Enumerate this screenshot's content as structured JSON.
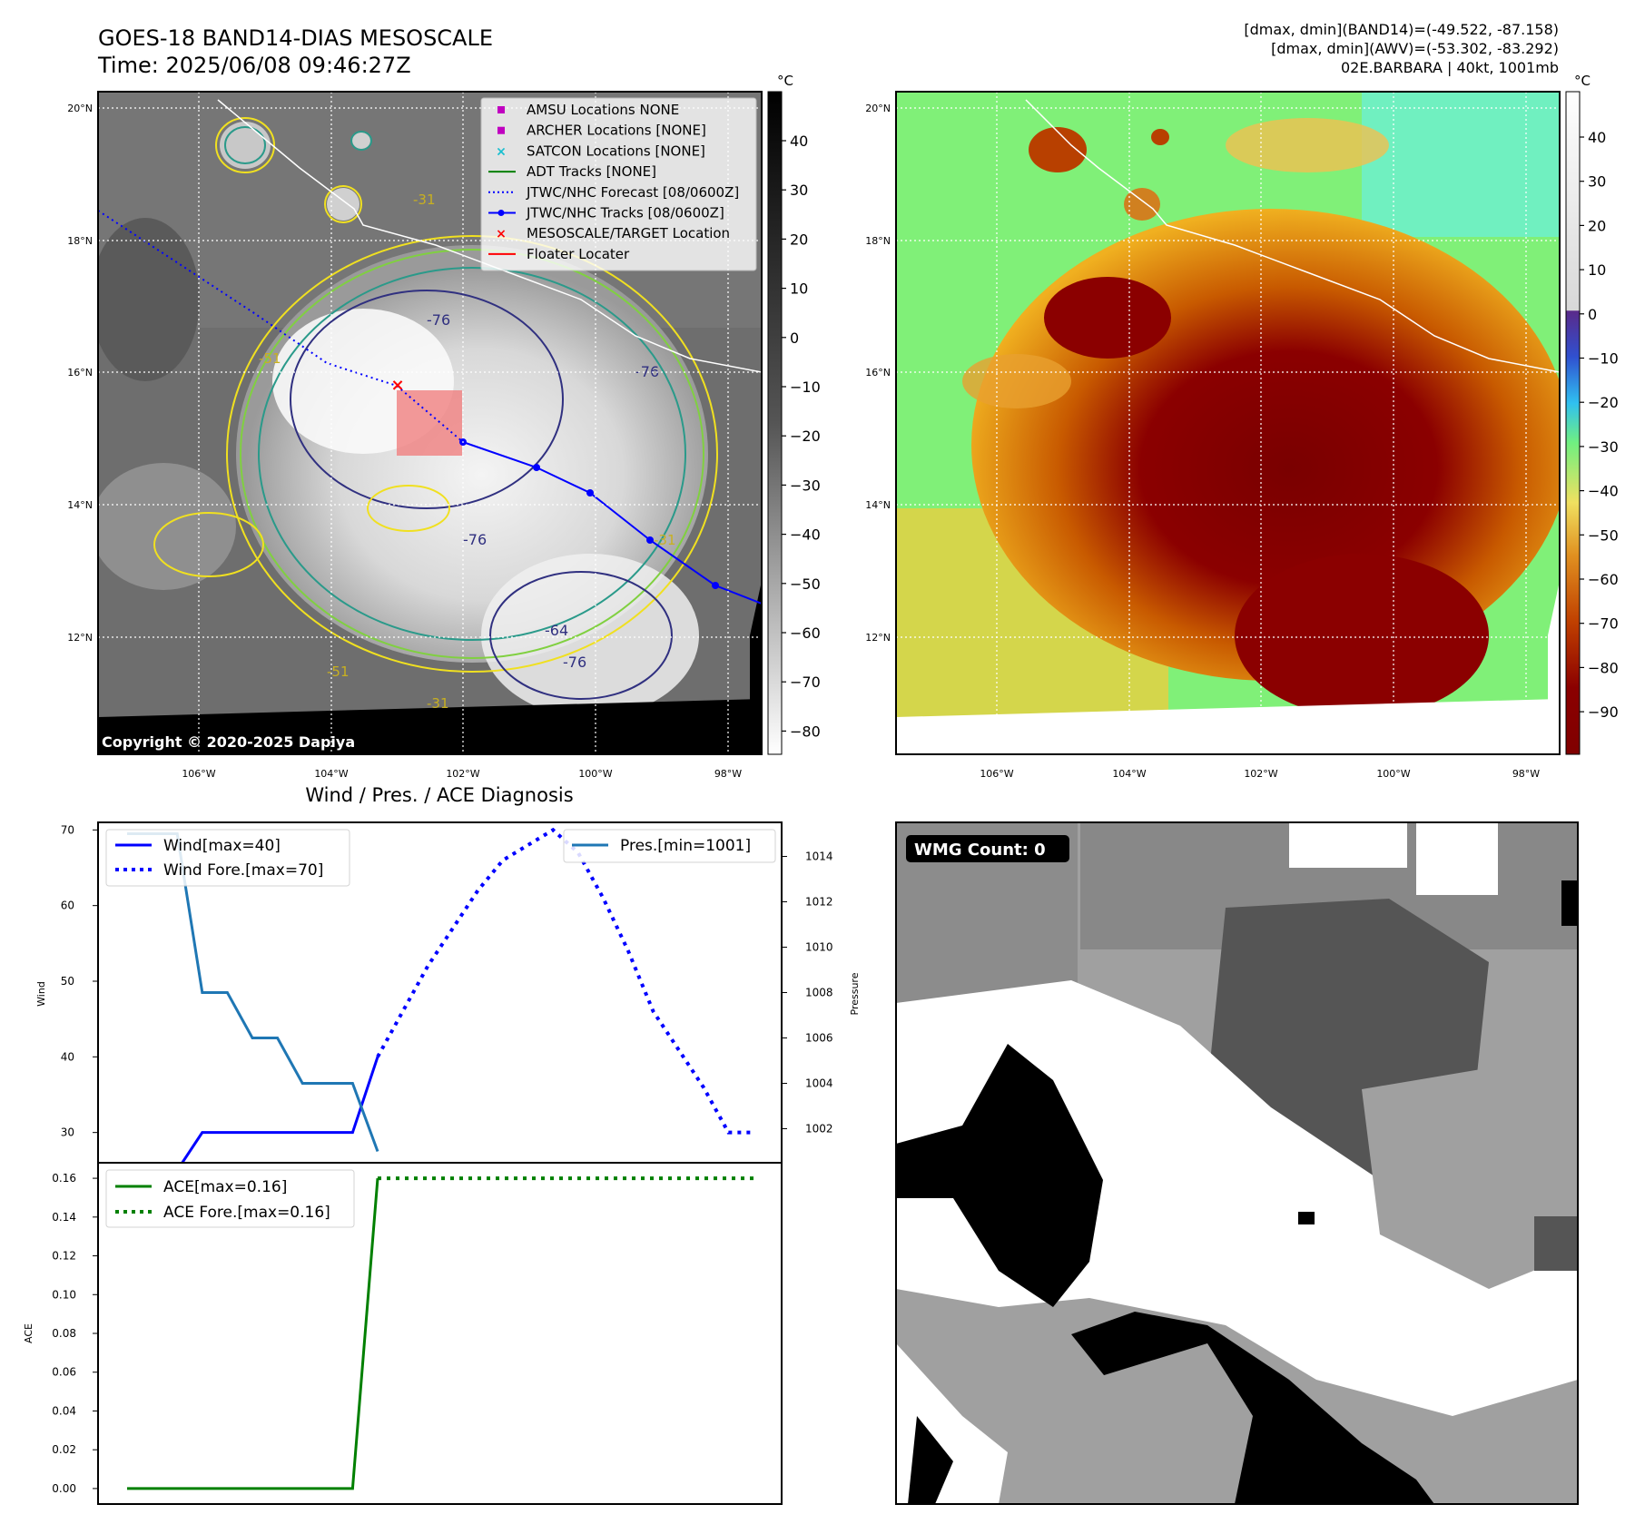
{
  "header": {
    "title_line1": "GOES-18 BAND14-DIAS MESOSCALE",
    "title_line2": "Time: 2025/06/08 09:46:27Z",
    "right_line1": "[dmax, dmin](BAND14)=(-49.522, -87.158)",
    "right_line2": "[dmax, dmin](AWV)=(-53.302, -83.292)",
    "right_line3": "02E.BARBARA | 40kt, 1001mb"
  },
  "map_axes": {
    "lon_labels": [
      "106°W",
      "104°W",
      "102°W",
      "100°W",
      "98°W"
    ],
    "lat_labels": [
      "20°N",
      "18°N",
      "16°N",
      "14°N",
      "12°N"
    ]
  },
  "map_left": {
    "copyright": "Copyright © 2020-2025 Dapiya",
    "colorbar_unit": "°C",
    "colorbar_ticks": [
      "40",
      "30",
      "20",
      "10",
      "0",
      "−10",
      "−20",
      "−30",
      "−40",
      "−50",
      "−60",
      "−70",
      "−80"
    ],
    "legend": [
      {
        "label": "AMSU Locations NONE",
        "color": "#c000c0",
        "marker": "square"
      },
      {
        "label": "ARCHER Locations [NONE]",
        "color": "#c000c0",
        "marker": "square"
      },
      {
        "label": "SATCON Locations [NONE]",
        "color": "#17becf",
        "marker": "x"
      },
      {
        "label": "ADT Tracks [NONE]",
        "color": "#008000",
        "marker": "line"
      },
      {
        "label": "JTWC/NHC Forecast [08/0600Z]",
        "color": "#0000ff",
        "marker": "dotted"
      },
      {
        "label": "JTWC/NHC Tracks [08/0600Z]",
        "color": "#0000ff",
        "marker": "line-dot"
      },
      {
        "label": "MESOSCALE/TARGET Location",
        "color": "#ff0000",
        "marker": "x"
      },
      {
        "label": "Floater Locater",
        "color": "#ff0000",
        "marker": "line"
      }
    ],
    "contour_labels": [
      "-76",
      "-76",
      "-76",
      "-76",
      "-64",
      "-51",
      "-31",
      "-31",
      "-31",
      "-51"
    ]
  },
  "map_right": {
    "colorbar_unit": "°C",
    "colorbar_ticks": [
      "40",
      "30",
      "20",
      "10",
      "0",
      "−10",
      "−20",
      "−30",
      "−40",
      "−50",
      "−60",
      "−70",
      "−80",
      "−90"
    ]
  },
  "panel_wind": {
    "title": "Wind / Pres. / ACE Diagnosis",
    "ylabel_left": "Wind",
    "ylabel_right": "Pressure",
    "yticks_left": [
      "70",
      "60",
      "50",
      "40",
      "30"
    ],
    "yticks_right": [
      "1014",
      "1012",
      "1010",
      "1008",
      "1006",
      "1004",
      "1002"
    ],
    "legend_left": [
      "Wind[max=40]",
      "Wind Fore.[max=70]"
    ],
    "legend_right": [
      "Pres.[min=1001]"
    ]
  },
  "panel_ace": {
    "ylabel": "ACE",
    "yticks": [
      "0.16",
      "0.14",
      "0.12",
      "0.10",
      "0.08",
      "0.06",
      "0.04",
      "0.02",
      "0.00"
    ],
    "legend": [
      "ACE[max=0.16]",
      "ACE Fore.[max=0.16]"
    ]
  },
  "panel_wmg": {
    "badge": "WMG Count: 0"
  },
  "colors": {
    "wind": "#0000ff",
    "pressure": "#1f77b4",
    "ace": "#008000",
    "track": "#0000ff",
    "floater": "#f08080",
    "target": "#ff0000"
  },
  "chart_data": [
    {
      "type": "line",
      "panel": "wind-pressure",
      "x": [
        0,
        1,
        2,
        3,
        4,
        5,
        6,
        7,
        8,
        9,
        10,
        11,
        12,
        13,
        14,
        15,
        16,
        17,
        18,
        19,
        20,
        21,
        22,
        23,
        24,
        25
      ],
      "series": [
        {
          "name": "Wind[max=40]",
          "axis": "left",
          "style": "solid",
          "x": [
            0,
            1,
            2,
            3,
            4,
            5,
            6,
            7,
            8,
            9,
            10
          ],
          "values": [
            25,
            25,
            25,
            30,
            30,
            30,
            30,
            30,
            30,
            30,
            40
          ]
        },
        {
          "name": "Wind Fore.[max=70]",
          "axis": "left",
          "style": "dotted",
          "x": [
            10,
            11,
            12,
            13,
            14,
            15,
            16,
            17,
            18,
            19,
            20,
            21,
            22,
            23,
            24,
            25
          ],
          "values": [
            40,
            46,
            52,
            57,
            62,
            66,
            68,
            70,
            67,
            61,
            54,
            46,
            41,
            36,
            30,
            30
          ]
        },
        {
          "name": "Pres.[min=1001]",
          "axis": "right",
          "style": "solid",
          "x": [
            0,
            1,
            2,
            3,
            4,
            5,
            6,
            7,
            8,
            9,
            10
          ],
          "values": [
            1015,
            1015,
            1015,
            1008,
            1008,
            1006,
            1006,
            1004,
            1004,
            1004,
            1001
          ]
        }
      ],
      "ylim_left": [
        26,
        71
      ],
      "ylim_right": [
        1000.5,
        1015.5
      ]
    },
    {
      "type": "line",
      "panel": "ace",
      "series": [
        {
          "name": "ACE[max=0.16]",
          "style": "solid",
          "x": [
            0,
            9,
            10
          ],
          "values": [
            0.0,
            0.0,
            0.16
          ]
        },
        {
          "name": "ACE Fore.[max=0.16]",
          "style": "dotted",
          "x": [
            10,
            25
          ],
          "values": [
            0.16,
            0.16
          ]
        }
      ],
      "ylim": [
        -0.008,
        0.168
      ]
    }
  ]
}
